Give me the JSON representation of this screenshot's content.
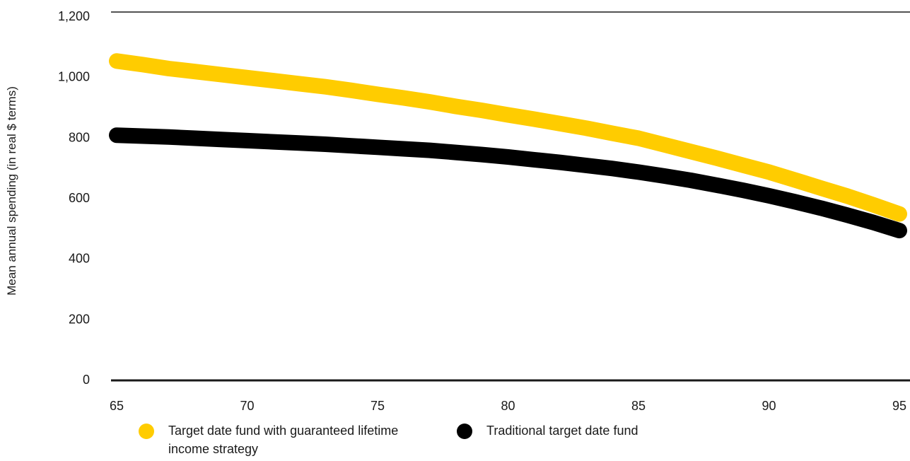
{
  "chart_data": {
    "type": "line",
    "title": "",
    "xlabel": "",
    "ylabel": "Mean annual spending (in real $ terms)",
    "x": [
      65,
      66,
      67,
      68,
      69,
      70,
      71,
      72,
      73,
      74,
      75,
      76,
      77,
      78,
      79,
      80,
      81,
      82,
      83,
      84,
      85,
      86,
      87,
      88,
      89,
      90,
      91,
      92,
      93,
      94,
      95
    ],
    "xticks": [
      "65",
      "70",
      "75",
      "80",
      "85",
      "90",
      "95"
    ],
    "yticks": [
      "0",
      "200",
      "400",
      "600",
      "800",
      "1,000",
      "1,200"
    ],
    "xlim": [
      65,
      95
    ],
    "ylim": [
      0,
      1200
    ],
    "grid": "top border line only",
    "legend_position": "bottom",
    "series": [
      {
        "name": "Target date fund with guaranteed lifetime income strategy",
        "color": "#FFCC00",
        "values": [
          1050,
          1038,
          1025,
          1015,
          1005,
          995,
          985,
          975,
          965,
          953,
          940,
          928,
          915,
          900,
          887,
          872,
          858,
          843,
          828,
          811,
          795,
          773,
          751,
          729,
          706,
          683,
          657,
          630,
          604,
          575,
          545
        ]
      },
      {
        "name": "Traditional target date fund",
        "color": "#000000",
        "values": [
          805,
          802,
          799,
          795,
          791,
          787,
          783,
          779,
          775,
          770,
          765,
          760,
          755,
          748,
          741,
          733,
          724,
          715,
          705,
          695,
          683,
          670,
          656,
          640,
          623,
          605,
          585,
          564,
          541,
          517,
          490
        ]
      }
    ]
  }
}
